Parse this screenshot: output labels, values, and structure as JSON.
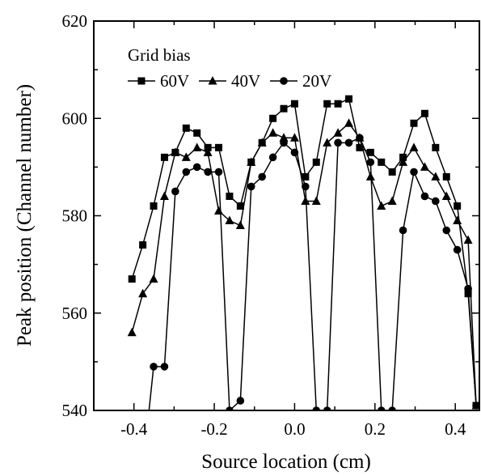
{
  "chart_data": {
    "type": "line",
    "xlabel": "Source location (cm)",
    "ylabel": "Peak position (Channel number)",
    "xlim": [
      -0.5,
      0.46
    ],
    "ylim": [
      540,
      620
    ],
    "xticks": [
      -0.4,
      -0.2,
      0.0,
      0.2,
      0.4
    ],
    "xtick_labels": [
      "-0.4",
      "-0.2",
      "0.0",
      "0.2",
      "0.4"
    ],
    "yticks": [
      540,
      560,
      580,
      600,
      620
    ],
    "ytick_labels": [
      "540",
      "560",
      "580",
      "600",
      "620"
    ],
    "grid": false,
    "legend": {
      "title": "Grid bias",
      "position": "top-left"
    },
    "series": [
      {
        "name": "60V",
        "marker": "square",
        "x": [
          -0.405,
          -0.378,
          -0.351,
          -0.324,
          -0.297,
          -0.27,
          -0.243,
          -0.216,
          -0.189,
          -0.162,
          -0.135,
          -0.108,
          -0.081,
          -0.054,
          -0.027,
          0.0,
          0.027,
          0.054,
          0.081,
          0.108,
          0.135,
          0.162,
          0.189,
          0.216,
          0.243,
          0.27,
          0.297,
          0.324,
          0.351,
          0.378,
          0.405,
          0.432,
          0.452
        ],
        "y": [
          567,
          574,
          582,
          592,
          593,
          598,
          597,
          594,
          594,
          584,
          582,
          591,
          595,
          600,
          602,
          603,
          588,
          591,
          603,
          603,
          604,
          594,
          593,
          591,
          589,
          592,
          599,
          601,
          594,
          588,
          582,
          564,
          541
        ]
      },
      {
        "name": "40V",
        "marker": "triangle",
        "x": [
          -0.405,
          -0.378,
          -0.351,
          -0.324,
          -0.297,
          -0.27,
          -0.243,
          -0.216,
          -0.189,
          -0.162,
          -0.135,
          -0.108,
          -0.081,
          -0.054,
          -0.027,
          0.0,
          0.027,
          0.054,
          0.081,
          0.108,
          0.135,
          0.162,
          0.189,
          0.216,
          0.243,
          0.27,
          0.297,
          0.324,
          0.351,
          0.378,
          0.405,
          0.432,
          0.452
        ],
        "y": [
          556,
          564,
          567,
          584,
          593,
          592,
          594,
          593,
          581,
          579,
          578,
          591,
          595,
          597,
          596,
          596,
          583,
          583,
          595,
          597,
          599,
          596,
          588,
          582,
          583,
          591,
          594,
          590,
          588,
          584,
          579,
          575,
          541
        ]
      },
      {
        "name": "20V",
        "marker": "circle",
        "x": [
          -0.365,
          -0.351,
          -0.324,
          -0.297,
          -0.27,
          -0.243,
          -0.216,
          -0.189,
          -0.162,
          -0.135,
          -0.108,
          -0.081,
          -0.054,
          -0.027,
          0.0,
          0.027,
          0.054,
          0.081,
          0.108,
          0.135,
          0.162,
          0.189,
          0.216,
          0.243,
          0.27,
          0.297,
          0.324,
          0.351,
          0.378,
          0.405,
          0.432,
          0.452
        ],
        "y": [
          538,
          549,
          549,
          585,
          589,
          590,
          589,
          589,
          540,
          542,
          586,
          588,
          592,
          595,
          593,
          586,
          540,
          540,
          595,
          595,
          596,
          591,
          540,
          540,
          577,
          589,
          584,
          583,
          577,
          573,
          565,
          541
        ]
      }
    ]
  }
}
